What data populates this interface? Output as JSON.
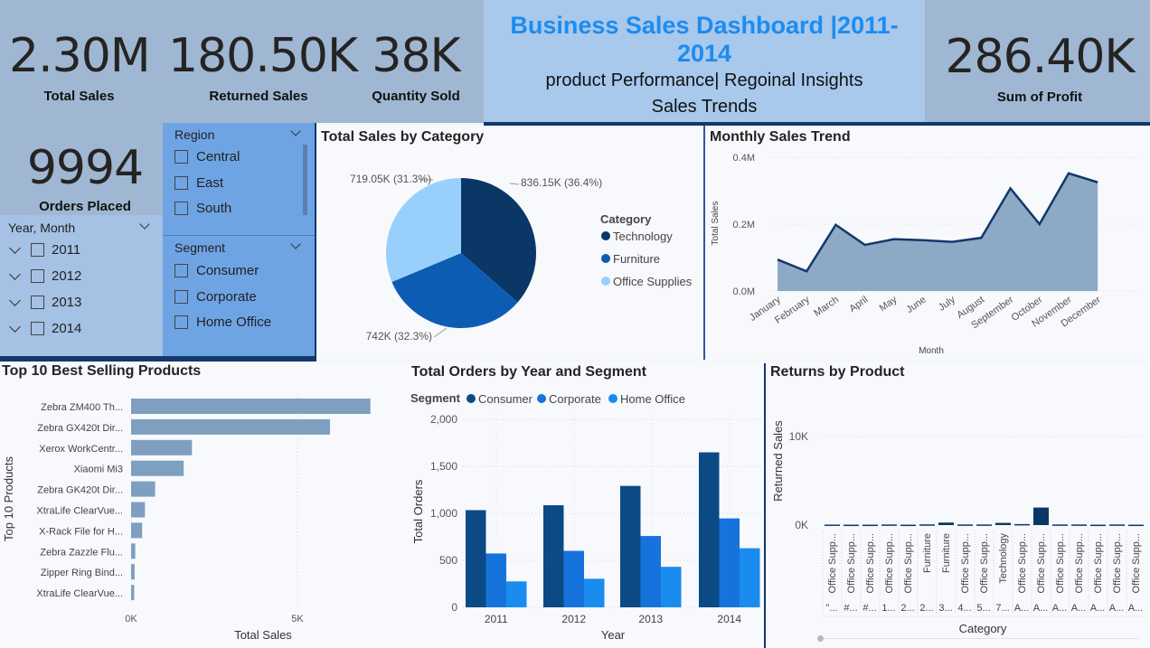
{
  "kpis": {
    "total_sales": {
      "value": "2.30M",
      "label": "Total Sales"
    },
    "returned_sales": {
      "value": "180.50K",
      "label": "Returned Sales"
    },
    "quantity_sold": {
      "value": "38K",
      "label": "Quantity Sold"
    },
    "profit": {
      "value": "286.40K",
      "label": "Sum of Profit"
    },
    "orders": {
      "value": "9994",
      "label": "Orders Placed"
    }
  },
  "header": {
    "title": "Business Sales Dashboard |2011-2014",
    "line2": "product Performance| Regoinal Insights",
    "line3": "Sales Trends"
  },
  "colors": {
    "navy": "#0b3766",
    "mid_blue": "#0d5cb3",
    "light_blue": "#99d0fb",
    "consumer": "#0c4a86",
    "corporate": "#1673db",
    "home_office": "#1a8cf0",
    "bar_grey": "#7f9fc0"
  },
  "slicers": {
    "region": {
      "title": "Region",
      "items": [
        "Central",
        "East",
        "South"
      ]
    },
    "segment": {
      "title": "Segment",
      "items": [
        "Consumer",
        "Corporate",
        "Home Office"
      ]
    },
    "year_month": {
      "title": "Year, Month",
      "items": [
        "2011",
        "2012",
        "2013",
        "2014"
      ]
    }
  },
  "chart_data": [
    {
      "type": "pie",
      "title": "Total Sales by Category",
      "legend_title": "Category",
      "legend_position": "right",
      "slices": [
        {
          "name": "Technology",
          "value": 836.15,
          "label": "836.15K (36.4%)",
          "color": "#0b3766"
        },
        {
          "name": "Furniture",
          "value": 742,
          "label": "742K (32.3%)",
          "color": "#0d5cb3"
        },
        {
          "name": "Office Supplies",
          "value": 719.05,
          "label": "719.05K (31.3%)",
          "color": "#99d0fb"
        }
      ]
    },
    {
      "type": "area",
      "title": "Monthly Sales Trend",
      "xlabel": "Month",
      "ylabel": "Total Sales",
      "ylim": [
        0,
        0.4
      ],
      "yticks": [
        "0.0M",
        "0.2M",
        "0.4M"
      ],
      "categories": [
        "January",
        "February",
        "March",
        "April",
        "May",
        "June",
        "July",
        "August",
        "September",
        "October",
        "November",
        "December"
      ],
      "values": [
        0.094,
        0.059,
        0.198,
        0.138,
        0.155,
        0.152,
        0.147,
        0.159,
        0.307,
        0.2,
        0.352,
        0.325
      ]
    },
    {
      "type": "bar",
      "orientation": "horizontal",
      "title": "Top 10 Best Selling Products",
      "xlabel": "Total Sales",
      "ylabel": "Top 10 Products",
      "xticks": [
        "0K",
        "5K"
      ],
      "xlim": [
        0,
        7000
      ],
      "categories": [
        "Zebra ZM400 Th...",
        "Zebra GX420t Dir...",
        "Xerox WorkCentr...",
        "Xiaomi Mi3",
        "Zebra GK420t Dir...",
        "XtraLife ClearVue...",
        "X-Rack File for H...",
        "Zebra Zazzle Flu...",
        "Zipper Ring Bind...",
        "XtraLife ClearVue..."
      ],
      "values": [
        6965,
        5790,
        1771,
        1531,
        700,
        403,
        322,
        121,
        102,
        91
      ]
    },
    {
      "type": "bar",
      "title": "Total Orders by Year and Segment",
      "xlabel": "Year",
      "ylabel": "Total Orders",
      "legend_title": "Segment",
      "ylim": [
        0,
        2000
      ],
      "yticks": [
        "0",
        "500",
        "1,000",
        "1,500",
        "2,000"
      ],
      "categories": [
        "2011",
        "2012",
        "2013",
        "2014"
      ],
      "series": [
        {
          "name": "Consumer",
          "values": [
            1034,
            1086,
            1292,
            1649
          ],
          "color": "#0c4a86"
        },
        {
          "name": "Corporate",
          "values": [
            573,
            601,
            759,
            946
          ],
          "color": "#1673db"
        },
        {
          "name": "Home Office",
          "values": [
            276,
            304,
            431,
            629
          ],
          "color": "#1a8cf0"
        }
      ]
    },
    {
      "type": "bar",
      "title": "Returns by Product",
      "xlabel": "Category",
      "ylabel": "Returned Sales",
      "yticks": [
        "0K",
        "10K"
      ],
      "ylim": [
        0,
        11000
      ],
      "categories": [
        "Office Supp...",
        "Office Supp...",
        "Office Supp...",
        "Office Supp...",
        "Office Supp...",
        "Furniture",
        "Furniture",
        "Office Supp...",
        "Office Supp...",
        "Technology",
        "Office Supp...",
        "Office Supp...",
        "Office Supp...",
        "Office Supp...",
        "Office Supp...",
        "Office Supp...",
        "Office Supp..."
      ],
      "subcategories": [
        "\"...",
        "#...",
        "#...",
        "1...",
        "2...",
        "2...",
        "3...",
        "4...",
        "5...",
        "7...",
        "A...",
        "A...",
        "A...",
        "A...",
        "A...",
        "A...",
        "A..."
      ],
      "values": [
        50,
        40,
        40,
        60,
        40,
        70,
        250,
        60,
        60,
        220,
        100,
        1750,
        60,
        60,
        40,
        60,
        40
      ]
    }
  ]
}
